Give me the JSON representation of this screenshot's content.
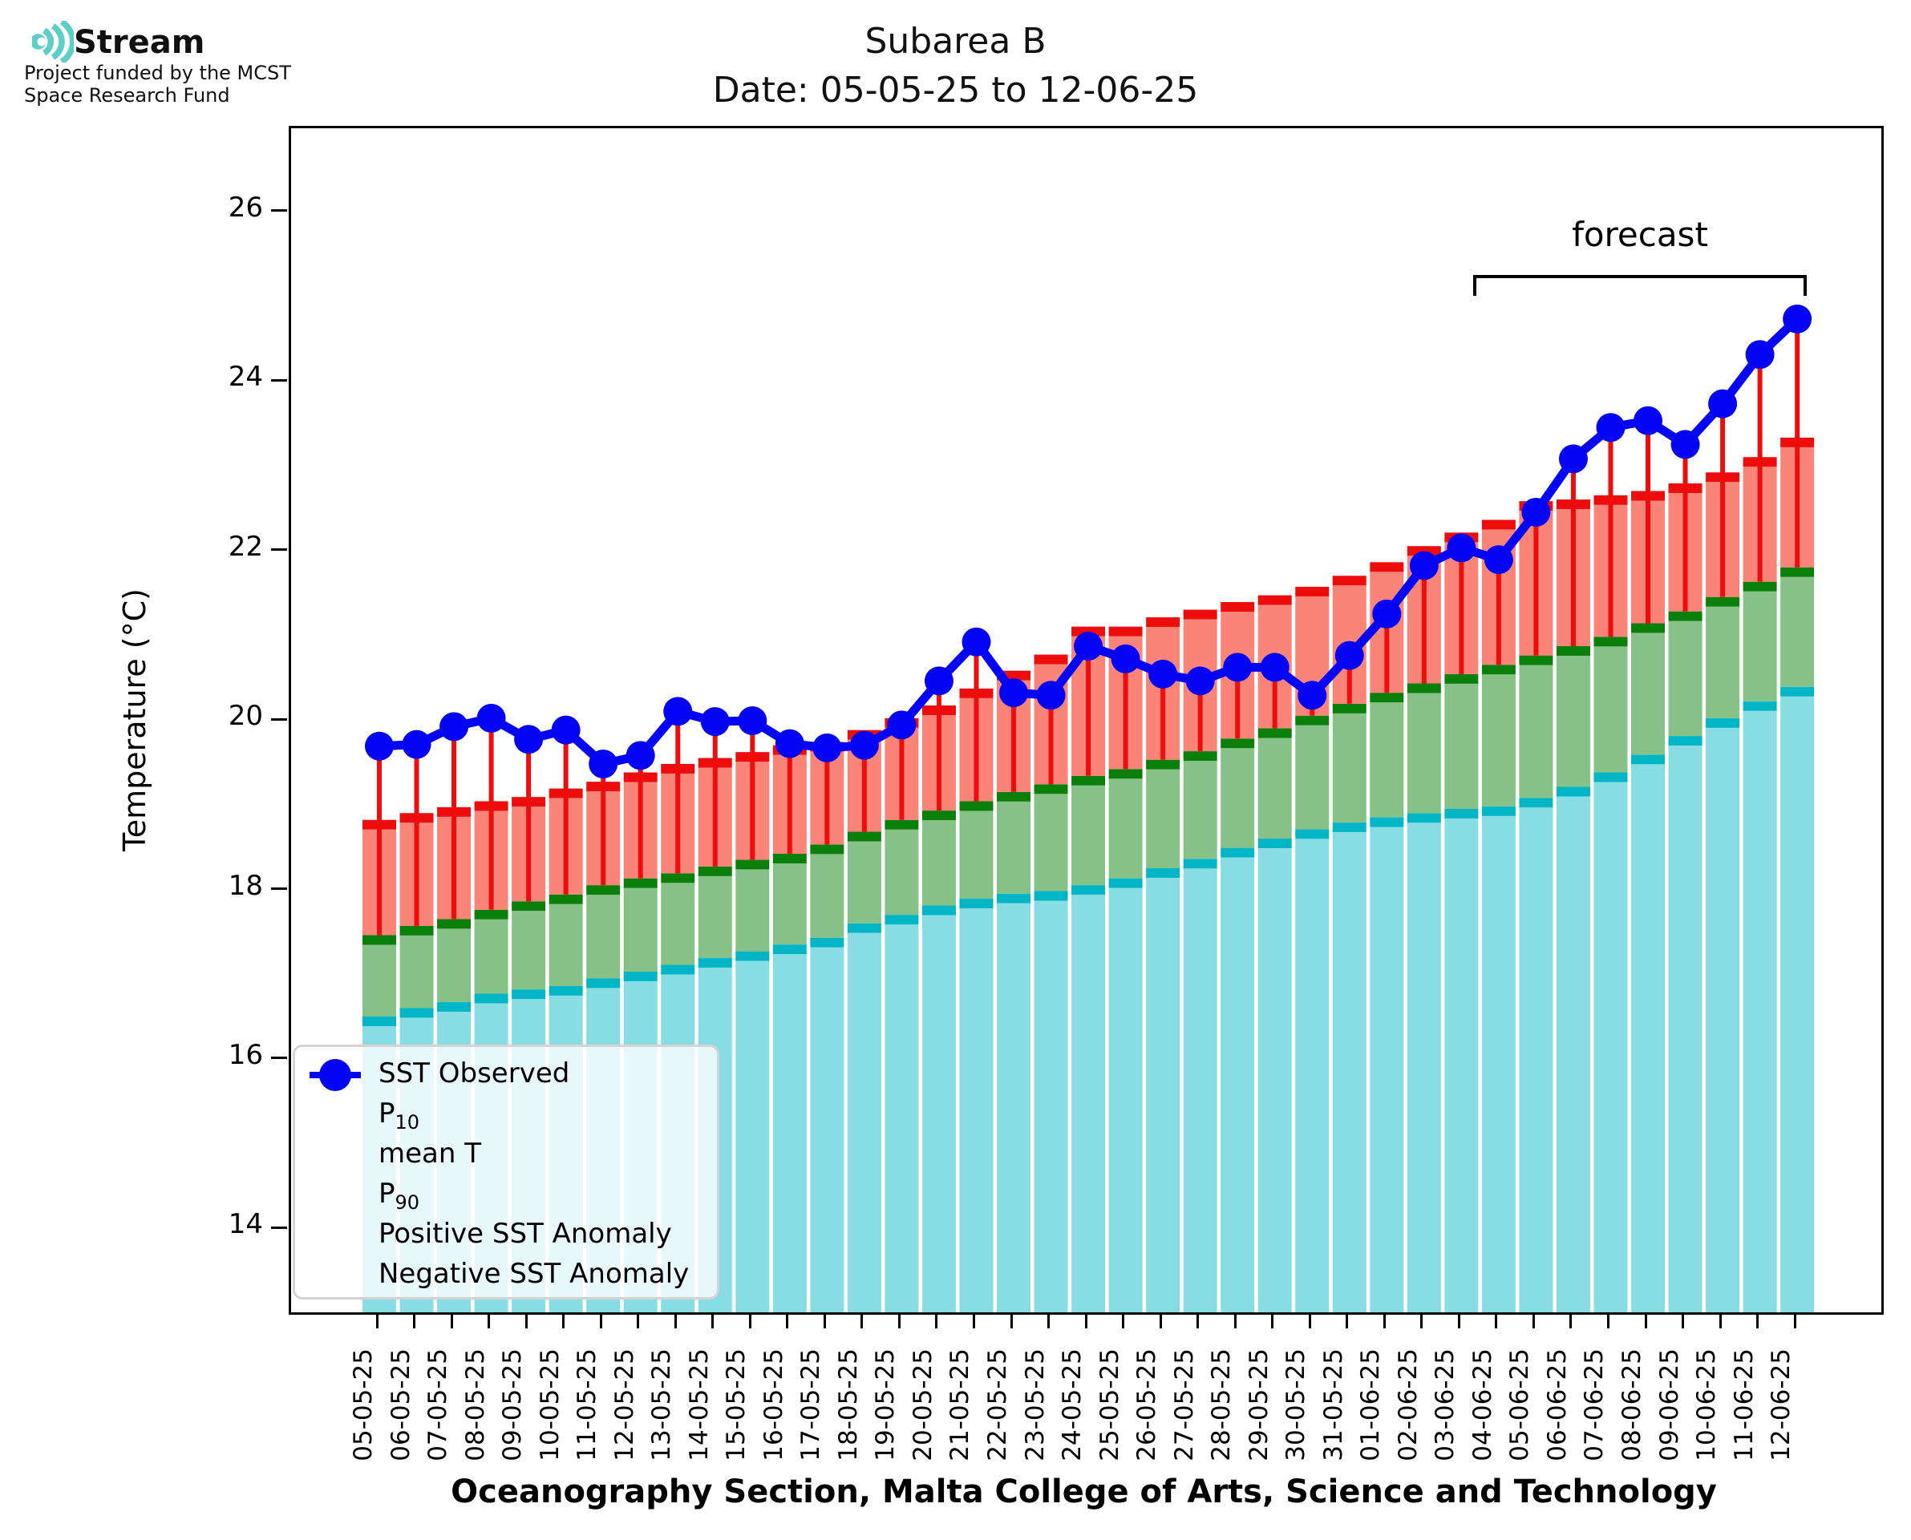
{
  "logo": {
    "name": "Stream",
    "tagline_line1": "Project funded by the MCST",
    "tagline_line2": "Space Research Fund"
  },
  "title": {
    "line1": "Subarea B",
    "line2": "Date: 05-05-25 to 12-06-25"
  },
  "chart_data": {
    "type": "bar",
    "title": "Subarea B",
    "subtitle": "Date: 05-05-25 to 12-06-25",
    "xlabel": "Oceanography Section, Malta College of Arts, Science and Technology",
    "ylabel": "Temperature (°C)",
    "ylim": [
      13.03,
      27.0
    ],
    "yticks": [
      26,
      24,
      22,
      20,
      18,
      16,
      14
    ],
    "grid": false,
    "legend_position": "lower left",
    "categories": [
      "05-05-25",
      "06-05-25",
      "07-05-25",
      "08-05-25",
      "09-05-25",
      "10-05-25",
      "11-05-25",
      "12-05-25",
      "13-05-25",
      "14-05-25",
      "15-05-25",
      "16-05-25",
      "17-05-25",
      "18-05-25",
      "19-05-25",
      "20-05-25",
      "21-05-25",
      "22-05-25",
      "23-05-25",
      "24-05-25",
      "25-05-25",
      "26-05-25",
      "27-05-25",
      "28-05-25",
      "29-05-25",
      "30-05-25",
      "31-05-25",
      "01-06-25",
      "02-06-25",
      "03-06-25",
      "04-06-25",
      "05-06-25",
      "06-06-25",
      "07-06-25",
      "08-06-25",
      "09-06-25",
      "10-06-25",
      "11-06-25",
      "12-06-25"
    ],
    "series": [
      {
        "name": "P10",
        "type": "stacked-bar-level",
        "values": [
          16.52,
          16.62,
          16.69,
          16.79,
          16.84,
          16.88,
          16.97,
          17.05,
          17.13,
          17.21,
          17.29,
          17.37,
          17.45,
          17.62,
          17.72,
          17.83,
          17.91,
          17.97,
          18.0,
          18.07,
          18.15,
          18.27,
          18.38,
          18.51,
          18.62,
          18.73,
          18.81,
          18.87,
          18.92,
          18.97,
          19.0,
          19.1,
          19.23,
          19.4,
          19.61,
          19.83,
          20.04,
          20.24,
          20.41
        ]
      },
      {
        "name": "mean T",
        "type": "stacked-bar-level",
        "values": [
          17.48,
          17.59,
          17.67,
          17.78,
          17.88,
          17.96,
          18.07,
          18.15,
          18.21,
          18.29,
          18.37,
          18.44,
          18.55,
          18.7,
          18.84,
          18.95,
          19.06,
          19.17,
          19.26,
          19.36,
          19.44,
          19.55,
          19.65,
          19.8,
          19.92,
          20.07,
          20.21,
          20.34,
          20.45,
          20.56,
          20.67,
          20.78,
          20.89,
          21.0,
          21.16,
          21.3,
          21.47,
          21.65,
          21.82
        ]
      },
      {
        "name": "P90",
        "type": "stacked-bar-level",
        "values": [
          18.84,
          18.92,
          18.99,
          19.06,
          19.11,
          19.21,
          19.29,
          19.4,
          19.5,
          19.57,
          19.64,
          19.72,
          19.76,
          19.9,
          20.04,
          20.19,
          20.39,
          20.6,
          20.79,
          21.12,
          21.12,
          21.23,
          21.32,
          21.41,
          21.49,
          21.59,
          21.72,
          21.88,
          22.07,
          22.23,
          22.38,
          22.6,
          22.62,
          22.67,
          22.72,
          22.81,
          22.94,
          23.12,
          23.35
        ]
      },
      {
        "name": "SST Observed",
        "type": "line-markers",
        "values": [
          19.71,
          19.73,
          19.94,
          20.04,
          19.79,
          19.9,
          19.5,
          19.6,
          20.12,
          20.0,
          20.01,
          19.74,
          19.69,
          19.72,
          19.96,
          20.48,
          20.94,
          20.34,
          20.31,
          20.89,
          20.74,
          20.56,
          20.48,
          20.64,
          20.64,
          20.31,
          20.78,
          21.27,
          21.84,
          22.05,
          21.91,
          22.47,
          23.1,
          23.47,
          23.55,
          23.27,
          23.75,
          24.33,
          24.75
        ]
      }
    ],
    "anomaly": {
      "note": "red stem drawn from mean T up to SST Observed on every date; all anomalies positive",
      "negative_count": 0
    },
    "annotations": {
      "forecast_label": "forecast",
      "forecast_start": "04-06-25",
      "forecast_end": "12-06-25"
    },
    "legend": [
      {
        "base": "SST Observed",
        "sub": ""
      },
      {
        "base": "P",
        "sub": "10"
      },
      {
        "base": "mean T",
        "sub": ""
      },
      {
        "base": "P",
        "sub": "90"
      },
      {
        "base": "Positive SST Anomaly",
        "sub": ""
      },
      {
        "base": "Negative SST Anomaly",
        "sub": ""
      }
    ],
    "colors": {
      "p10_fill": "#87dde3",
      "p10_cap": "#00b6c6",
      "mean_fill": "#86c287",
      "mean_cap": "#0a7f0a",
      "p90_fill": "#fa8478",
      "p90_cap": "#ee0d0d",
      "anomaly_positive": "#ee0d0d",
      "anomaly_negative": "#0000f0",
      "observed": "#0404f5",
      "logo_teal": "#5ecfc8"
    }
  }
}
